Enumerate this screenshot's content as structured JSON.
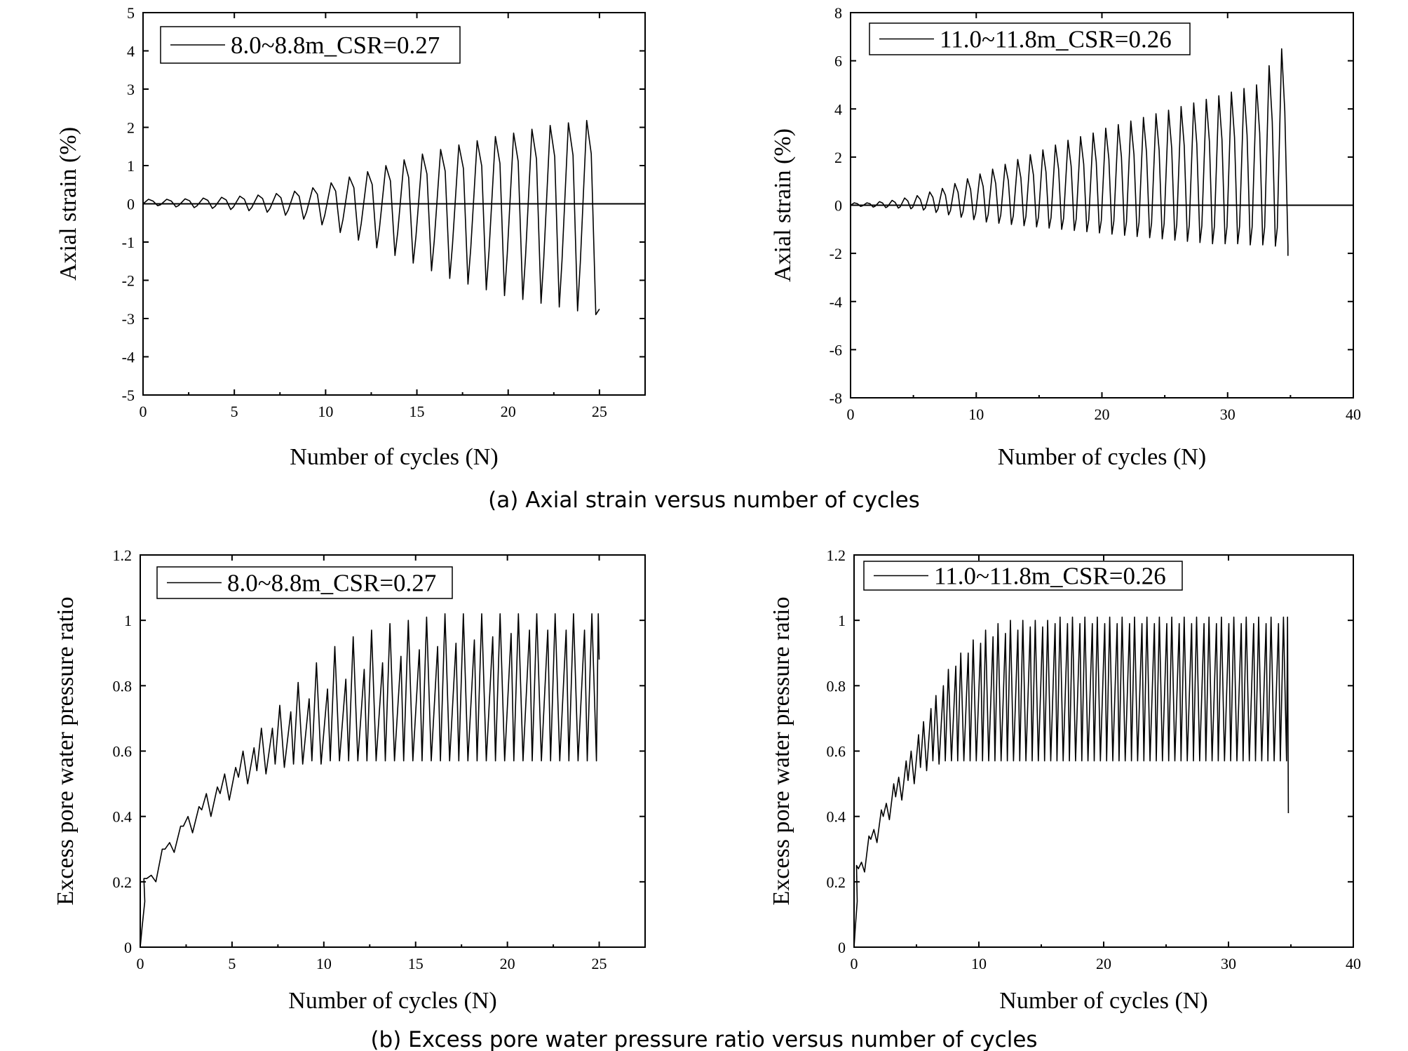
{
  "captions": {
    "a": "(a) Axial strain versus number of cycles",
    "b": "(b) Excess pore water pressure ratio versus number of cycles"
  },
  "chart_data": [
    {
      "type": "line",
      "kind": "strain",
      "legend": "8.0~8.8m_CSR=0.27",
      "legend_position": "top-left",
      "xlabel": "Number of cycles (N)",
      "ylabel": "Axial strain (%)",
      "xlim": [
        0,
        27.5
      ],
      "ylim": [
        -5,
        5
      ],
      "xticks": [
        0,
        5,
        10,
        15,
        20,
        25
      ],
      "yticks": [
        -5,
        -4,
        -3,
        -2,
        -1,
        0,
        1,
        2,
        3,
        4,
        5
      ],
      "zero_line": true,
      "grid": false,
      "n_cycles": 25,
      "end_x": 25,
      "peak_max": [
        0.12,
        0.12,
        0.13,
        0.15,
        0.17,
        0.2,
        0.23,
        0.27,
        0.33,
        0.42,
        0.55,
        0.7,
        0.84,
        1.0,
        1.15,
        1.3,
        1.42,
        1.54,
        1.65,
        1.76,
        1.85,
        1.95,
        2.05,
        2.12,
        2.18
      ],
      "peak_min": [
        -0.05,
        -0.08,
        -0.1,
        -0.12,
        -0.15,
        -0.18,
        -0.22,
        -0.3,
        -0.4,
        -0.55,
        -0.75,
        -0.95,
        -1.15,
        -1.35,
        -1.55,
        -1.75,
        -1.95,
        -2.1,
        -2.25,
        -2.4,
        -2.5,
        -2.6,
        -2.7,
        -2.8,
        -2.9
      ],
      "final_value": -2.75
    },
    {
      "type": "line",
      "kind": "strain",
      "legend": "11.0~11.8m_CSR=0.26",
      "legend_position": "top-left",
      "xlabel": "Number of cycles (N)",
      "ylabel": "Axial strain (%)",
      "xlim": [
        0,
        40
      ],
      "ylim": [
        -8,
        8
      ],
      "xticks": [
        0,
        10,
        20,
        30,
        40
      ],
      "yticks": [
        -8,
        -6,
        -4,
        -2,
        0,
        2,
        4,
        6,
        8
      ],
      "zero_line": true,
      "grid": false,
      "n_cycles": 35,
      "end_x": 34.8,
      "peak_max": [
        0.1,
        0.1,
        0.15,
        0.2,
        0.3,
        0.4,
        0.55,
        0.7,
        0.9,
        1.1,
        1.3,
        1.5,
        1.7,
        1.9,
        2.1,
        2.3,
        2.5,
        2.7,
        2.85,
        3.0,
        3.2,
        3.35,
        3.5,
        3.65,
        3.8,
        3.95,
        4.1,
        4.25,
        4.4,
        4.55,
        4.7,
        4.85,
        5.0,
        5.8,
        6.5
      ],
      "peak_min": [
        -0.05,
        -0.08,
        -0.1,
        -0.12,
        -0.15,
        -0.2,
        -0.3,
        -0.4,
        -0.5,
        -0.6,
        -0.7,
        -0.75,
        -0.8,
        -0.85,
        -0.9,
        -0.95,
        -1.0,
        -1.05,
        -1.1,
        -1.15,
        -1.2,
        -1.25,
        -1.3,
        -1.35,
        -1.4,
        -1.45,
        -1.5,
        -1.55,
        -1.6,
        -1.6,
        -1.6,
        -1.65,
        -1.65,
        -1.7,
        -1.7
      ],
      "final_value": -2.1
    },
    {
      "type": "line",
      "kind": "pore",
      "legend": "8.0~8.8m_CSR=0.27",
      "legend_position": "top-left",
      "xlabel": "Number of cycles (N)",
      "ylabel": "Excess pore water pressure ratio",
      "xlim": [
        0,
        27.5
      ],
      "ylim": [
        0,
        1.2
      ],
      "xticks": [
        0,
        5,
        10,
        15,
        20,
        25
      ],
      "yticks": [
        0,
        0.2,
        0.4,
        0.6,
        0.8,
        1,
        1.2
      ],
      "ytick_labels": [
        "0",
        "0.2",
        "0.4",
        "0.6",
        "0.8",
        "1",
        "1.2"
      ],
      "zero_line": false,
      "grid": false,
      "half_cycles": 50,
      "end_x": 25,
      "major_peaks": [
        0.22,
        0.32,
        0.4,
        0.47,
        0.53,
        0.6,
        0.67,
        0.74,
        0.81,
        0.87,
        0.92,
        0.95,
        0.97,
        0.99,
        1.0,
        1.01,
        1.02,
        1.02,
        1.02,
        1.02,
        1.02,
        1.02,
        1.02,
        1.02,
        1.02
      ],
      "minor_peaks": [
        0.21,
        0.3,
        0.37,
        0.43,
        0.49,
        0.55,
        0.61,
        0.67,
        0.72,
        0.76,
        0.79,
        0.82,
        0.85,
        0.87,
        0.89,
        0.91,
        0.92,
        0.93,
        0.94,
        0.95,
        0.96,
        0.97,
        0.97,
        0.97,
        0.97
      ],
      "troughs_after_major": [
        0.2,
        0.29,
        0.35,
        0.4,
        0.45,
        0.5,
        0.53,
        0.55,
        0.56,
        0.56,
        0.57,
        0.57,
        0.57,
        0.57,
        0.57,
        0.57,
        0.57,
        0.57,
        0.57,
        0.57,
        0.57,
        0.57,
        0.57,
        0.57,
        0.57
      ],
      "troughs_after_minor": [
        0.21,
        0.3,
        0.37,
        0.42,
        0.47,
        0.52,
        0.54,
        0.56,
        0.56,
        0.57,
        0.57,
        0.57,
        0.57,
        0.57,
        0.57,
        0.57,
        0.57,
        0.57,
        0.57,
        0.57,
        0.57,
        0.57,
        0.57,
        0.57,
        0.57
      ],
      "final_value": 0.88
    },
    {
      "type": "line",
      "kind": "pore",
      "legend": "11.0~11.8m_CSR=0.26",
      "legend_position": "top-left",
      "xlabel": "Number of cycles (N)",
      "ylabel": "Excess pore water pressure ratio",
      "xlim": [
        0,
        40
      ],
      "ylim": [
        0,
        1.2
      ],
      "xticks": [
        0,
        10,
        20,
        30,
        40
      ],
      "yticks": [
        0,
        0.2,
        0.4,
        0.6,
        0.8,
        1,
        1.2
      ],
      "ytick_labels": [
        "0",
        "0.2",
        "0.4",
        "0.6",
        "0.8",
        "1",
        "1.2"
      ],
      "zero_line": false,
      "grid": false,
      "half_cycles": 70,
      "end_x": 34.8,
      "major_peaks": [
        0.26,
        0.36,
        0.44,
        0.52,
        0.6,
        0.69,
        0.77,
        0.85,
        0.9,
        0.94,
        0.97,
        0.99,
        1.0,
        1.0,
        1.0,
        1.0,
        1.01,
        1.01,
        1.01,
        1.01,
        1.01,
        1.01,
        1.01,
        1.01,
        1.01,
        1.01,
        1.01,
        1.01,
        1.01,
        1.01,
        1.01,
        1.01,
        1.01,
        1.01,
        1.01
      ],
      "minor_peaks": [
        0.25,
        0.34,
        0.42,
        0.5,
        0.57,
        0.65,
        0.73,
        0.8,
        0.86,
        0.9,
        0.93,
        0.95,
        0.96,
        0.97,
        0.98,
        0.98,
        0.99,
        0.99,
        0.99,
        0.99,
        0.99,
        0.99,
        0.99,
        0.99,
        0.99,
        0.99,
        0.99,
        0.99,
        0.99,
        0.99,
        0.99,
        0.99,
        0.99,
        0.99,
        0.99
      ],
      "troughs_after_major": [
        0.23,
        0.32,
        0.39,
        0.45,
        0.5,
        0.54,
        0.56,
        0.57,
        0.57,
        0.57,
        0.57,
        0.57,
        0.57,
        0.57,
        0.57,
        0.57,
        0.57,
        0.57,
        0.57,
        0.57,
        0.57,
        0.57,
        0.57,
        0.57,
        0.57,
        0.57,
        0.57,
        0.57,
        0.57,
        0.57,
        0.57,
        0.57,
        0.57,
        0.57,
        0.57
      ],
      "troughs_after_minor": [
        0.24,
        0.33,
        0.4,
        0.46,
        0.51,
        0.55,
        0.57,
        0.57,
        0.57,
        0.57,
        0.57,
        0.57,
        0.57,
        0.57,
        0.57,
        0.57,
        0.57,
        0.57,
        0.57,
        0.57,
        0.57,
        0.57,
        0.57,
        0.57,
        0.57,
        0.57,
        0.57,
        0.57,
        0.57,
        0.57,
        0.57,
        0.57,
        0.57,
        0.57,
        0.57
      ],
      "final_value": 0.41
    }
  ]
}
